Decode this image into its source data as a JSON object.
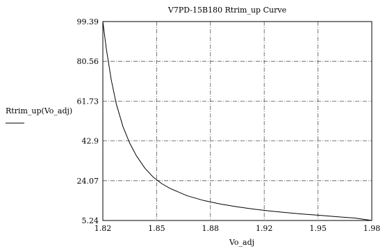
{
  "chart_data": {
    "type": "line",
    "title": "V7PD-15B180 Rtrim_up Curve",
    "xlabel": "Vo_adj",
    "ylabel": "Rtrim_up(Vo_adj)",
    "x_ticks": [
      "1.82",
      "1.85",
      "1.88",
      "1.92",
      "1.95",
      "1.98"
    ],
    "y_ticks": [
      "99.39",
      "80.56",
      "61.73",
      "42.9",
      "24.07",
      "5.24"
    ],
    "xlim": [
      1.82,
      1.98
    ],
    "ylim": [
      5.24,
      99.39
    ],
    "grid": true,
    "grid_style": "dash-dot",
    "line_color": "#000000",
    "series": [
      {
        "x": [
          1.82,
          1.822,
          1.825,
          1.828,
          1.832,
          1.836,
          1.84,
          1.845,
          1.85,
          1.855,
          1.86,
          1.87,
          1.88,
          1.89,
          1.9,
          1.91,
          1.92,
          1.93,
          1.94,
          1.95,
          1.96,
          1.97,
          1.98
        ],
        "y": [
          99.39,
          86.9,
          71.8,
          60.3,
          49.6,
          41.8,
          35.8,
          30.0,
          25.7,
          22.7,
          20.4,
          17.0,
          14.7,
          13.0,
          11.7,
          10.6,
          9.7,
          8.9,
          8.2,
          7.6,
          7.0,
          6.4,
          5.24
        ]
      }
    ]
  }
}
